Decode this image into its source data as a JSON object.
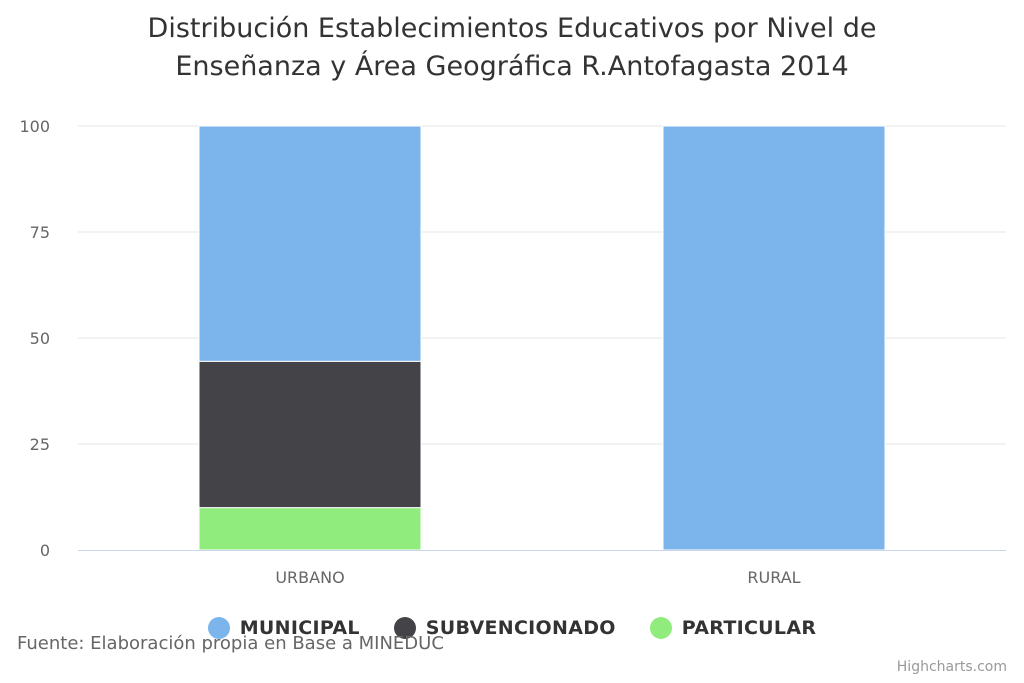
{
  "chart_data": {
    "type": "bar",
    "stacked": true,
    "title_lines": [
      "Distribución Establecimientos Educativos por Nivel de",
      "Enseñanza y Área Geográfica R.Antofagasta 2014"
    ],
    "categories": [
      "URBANO",
      "RURAL"
    ],
    "series": [
      {
        "name": "MUNICIPAL",
        "color": "#7cb5ec",
        "values": [
          55.5,
          100
        ]
      },
      {
        "name": "SUBVENCIONADO",
        "color": "#434348",
        "values": [
          34.5,
          0
        ]
      },
      {
        "name": "PARTICULAR",
        "color": "#90ed7d",
        "values": [
          10,
          0
        ]
      }
    ],
    "ylim": [
      0,
      100
    ],
    "yticks": [
      0,
      25,
      50,
      75,
      100
    ],
    "grid": true,
    "legend_placement": "bottom-center"
  },
  "source": "Fuente: Elaboración propia en Base a MINEDUC",
  "credits": "Highcharts.com"
}
